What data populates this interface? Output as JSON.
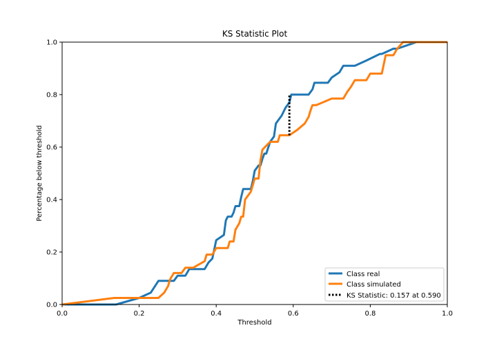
{
  "chart_data": {
    "type": "line",
    "title": "KS Statistic Plot",
    "xlabel": "Threshold",
    "ylabel": "Percentage below threshold",
    "xlim": [
      0.0,
      1.0
    ],
    "ylim": [
      0.0,
      1.0
    ],
    "x_ticks": [
      "0.0",
      "0.2",
      "0.4",
      "0.6",
      "0.8",
      "1.0"
    ],
    "y_ticks": [
      "0.0",
      "0.2",
      "0.4",
      "0.6",
      "0.8",
      "1.0"
    ],
    "grid": false,
    "legend_position": "lower-right",
    "series": [
      {
        "name": "Class real",
        "color": "#1f77b4",
        "points": [
          [
            0.0,
            0.0
          ],
          [
            0.14,
            0.0
          ],
          [
            0.2,
            0.025
          ],
          [
            0.23,
            0.045
          ],
          [
            0.25,
            0.09
          ],
          [
            0.29,
            0.09
          ],
          [
            0.3,
            0.11
          ],
          [
            0.32,
            0.11
          ],
          [
            0.33,
            0.135
          ],
          [
            0.37,
            0.135
          ],
          [
            0.38,
            0.16
          ],
          [
            0.39,
            0.175
          ],
          [
            0.4,
            0.245
          ],
          [
            0.42,
            0.265
          ],
          [
            0.425,
            0.32
          ],
          [
            0.43,
            0.335
          ],
          [
            0.44,
            0.335
          ],
          [
            0.445,
            0.35
          ],
          [
            0.45,
            0.375
          ],
          [
            0.46,
            0.375
          ],
          [
            0.465,
            0.41
          ],
          [
            0.47,
            0.44
          ],
          [
            0.49,
            0.44
          ],
          [
            0.495,
            0.47
          ],
          [
            0.5,
            0.51
          ],
          [
            0.51,
            0.53
          ],
          [
            0.515,
            0.53
          ],
          [
            0.52,
            0.555
          ],
          [
            0.525,
            0.575
          ],
          [
            0.53,
            0.575
          ],
          [
            0.54,
            0.62
          ],
          [
            0.55,
            0.64
          ],
          [
            0.555,
            0.69
          ],
          [
            0.56,
            0.7
          ],
          [
            0.57,
            0.72
          ],
          [
            0.58,
            0.75
          ],
          [
            0.59,
            0.77
          ],
          [
            0.595,
            0.8
          ],
          [
            0.64,
            0.8
          ],
          [
            0.65,
            0.82
          ],
          [
            0.655,
            0.845
          ],
          [
            0.69,
            0.845
          ],
          [
            0.7,
            0.865
          ],
          [
            0.72,
            0.885
          ],
          [
            0.73,
            0.91
          ],
          [
            0.76,
            0.91
          ],
          [
            0.79,
            0.93
          ],
          [
            0.825,
            0.955
          ],
          [
            0.83,
            0.955
          ],
          [
            0.86,
            0.975
          ],
          [
            0.87,
            0.975
          ],
          [
            0.89,
            0.985
          ],
          [
            0.92,
            1.0
          ],
          [
            1.0,
            1.0
          ]
        ]
      },
      {
        "name": "Class simulated",
        "color": "#ff7f0e",
        "points": [
          [
            0.0,
            0.0
          ],
          [
            0.135,
            0.025
          ],
          [
            0.25,
            0.025
          ],
          [
            0.265,
            0.045
          ],
          [
            0.275,
            0.07
          ],
          [
            0.28,
            0.095
          ],
          [
            0.29,
            0.12
          ],
          [
            0.31,
            0.12
          ],
          [
            0.32,
            0.14
          ],
          [
            0.34,
            0.14
          ],
          [
            0.37,
            0.165
          ],
          [
            0.375,
            0.19
          ],
          [
            0.39,
            0.19
          ],
          [
            0.4,
            0.215
          ],
          [
            0.43,
            0.215
          ],
          [
            0.435,
            0.24
          ],
          [
            0.445,
            0.24
          ],
          [
            0.45,
            0.285
          ],
          [
            0.46,
            0.31
          ],
          [
            0.465,
            0.335
          ],
          [
            0.47,
            0.335
          ],
          [
            0.475,
            0.4
          ],
          [
            0.49,
            0.43
          ],
          [
            0.495,
            0.455
          ],
          [
            0.5,
            0.48
          ],
          [
            0.51,
            0.48
          ],
          [
            0.515,
            0.55
          ],
          [
            0.52,
            0.59
          ],
          [
            0.53,
            0.605
          ],
          [
            0.54,
            0.62
          ],
          [
            0.56,
            0.62
          ],
          [
            0.565,
            0.645
          ],
          [
            0.59,
            0.645
          ],
          [
            0.61,
            0.665
          ],
          [
            0.63,
            0.69
          ],
          [
            0.64,
            0.715
          ],
          [
            0.645,
            0.74
          ],
          [
            0.65,
            0.76
          ],
          [
            0.66,
            0.76
          ],
          [
            0.7,
            0.785
          ],
          [
            0.73,
            0.785
          ],
          [
            0.74,
            0.81
          ],
          [
            0.75,
            0.83
          ],
          [
            0.76,
            0.855
          ],
          [
            0.79,
            0.855
          ],
          [
            0.8,
            0.88
          ],
          [
            0.83,
            0.88
          ],
          [
            0.84,
            0.95
          ],
          [
            0.86,
            0.95
          ],
          [
            0.87,
            0.975
          ],
          [
            0.885,
            1.0
          ],
          [
            1.0,
            1.0
          ]
        ]
      }
    ],
    "ks_statistic": {
      "label": "KS Statistic: 0.157 at 0.590",
      "x": 0.59,
      "y_from": 0.645,
      "y_to": 0.8,
      "color": "#000000"
    }
  }
}
